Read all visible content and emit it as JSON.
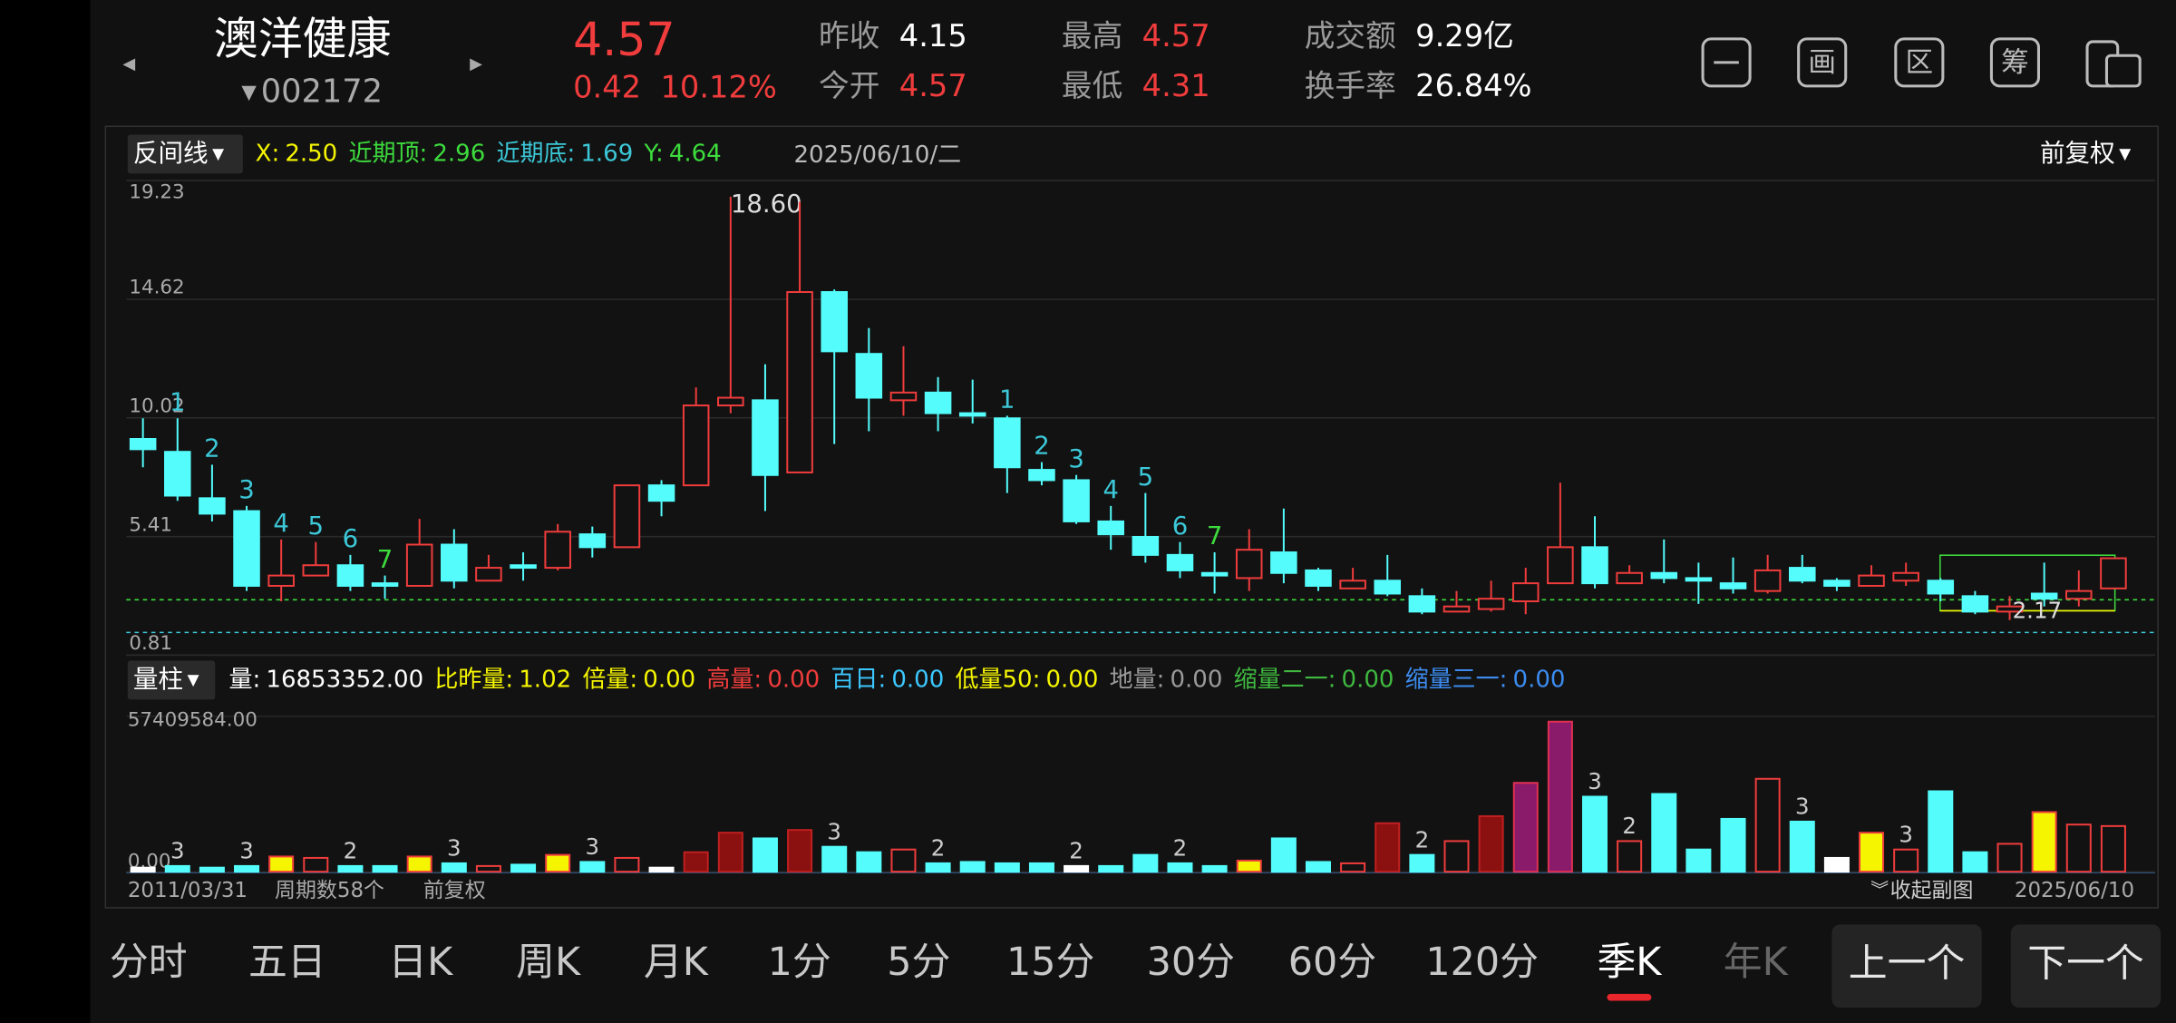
{
  "header": {
    "name": "澳洋健康",
    "code": "002172",
    "price": "4.57",
    "change": "0.42",
    "change_pct": "10.12%",
    "stats": [
      {
        "label": "昨收",
        "value": "4.15",
        "color": "#ffffff"
      },
      {
        "label": "今开",
        "value": "4.57",
        "color": "#f03c3c"
      },
      {
        "label": "最高",
        "value": "4.57",
        "color": "#f03c3c"
      },
      {
        "label": "最低",
        "value": "4.31",
        "color": "#f03c3c"
      },
      {
        "label": "成交额",
        "value": "9.29亿",
        "color": "#ffffff"
      },
      {
        "label": "换手率",
        "value": "26.84%",
        "color": "#ffffff"
      }
    ]
  },
  "toolbar": [
    "画",
    "区",
    "筹"
  ],
  "price_indicator": {
    "name": "反间线",
    "date": "2025/06/10/二",
    "adjust": "前复权",
    "items": [
      {
        "label": "X:",
        "value": "2.50",
        "color": "#f5f500"
      },
      {
        "label": "近期顶:",
        "value": 2.96,
        "color": "#3ddc3d"
      },
      {
        "label": "近期底:",
        "value": 1.69,
        "color": "#3cc8d8"
      },
      {
        "label": "Y:",
        "value": 4.64,
        "color": "#3ddc3d"
      }
    ]
  },
  "volume_indicator": {
    "name": "量柱",
    "items": [
      {
        "label": "量:",
        "value": "16853352.00",
        "color": "#ffffff"
      },
      {
        "label": "比昨量:",
        "value": "1.02",
        "color": "#f5f500"
      },
      {
        "label": "倍量:",
        "value": "0.00",
        "color": "#f5f500"
      },
      {
        "label": "高量:",
        "value": "0.00",
        "color": "#f03c3c"
      },
      {
        "label": "百日:",
        "value": "0.00",
        "color": "#3cc8ff"
      },
      {
        "label": "低量50:",
        "value": "0.00",
        "color": "#f5f500"
      },
      {
        "label": "地量:",
        "value": "0.00",
        "color": "#9a9a9a"
      },
      {
        "label": "缩量二一:",
        "value": "0.00",
        "color": "#3fb83f"
      },
      {
        "label": "缩量三一:",
        "value": "0.00",
        "color": "#3c8cf0"
      }
    ]
  },
  "chart_data": [
    {
      "type": "candlestick",
      "open": [
        9.2,
        8.7,
        6.9,
        6.4,
        3.5,
        3.9,
        4.3,
        3.6,
        3.5,
        5.1,
        3.7,
        4.3,
        4.2,
        5.5,
        5.0,
        7.4,
        7.4,
        10.5,
        10.7,
        7.9,
        14.9,
        12.5,
        10.7,
        11.0,
        10.2,
        10.0,
        8.0,
        7.6,
        6.0,
        5.4,
        4.7,
        4.0,
        3.8,
        4.8,
        4.1,
        3.4,
        3.7,
        3.1,
        2.5,
        2.6,
        2.9,
        3.6,
        5.0,
        3.6,
        4.0,
        3.8,
        3.6,
        3.3,
        4.2,
        3.7,
        3.5,
        3.7,
        3.7,
        3.1,
        2.5,
        3.2,
        3.0,
        3.4
      ],
      "close": [
        8.8,
        7.0,
        6.3,
        3.5,
        3.9,
        4.3,
        3.5,
        3.5,
        5.1,
        3.7,
        4.2,
        4.2,
        5.6,
        5.0,
        7.4,
        6.8,
        10.5,
        10.8,
        7.8,
        14.9,
        12.6,
        10.8,
        11.0,
        10.2,
        10.1,
        8.1,
        7.6,
        6.0,
        5.5,
        4.7,
        4.1,
        3.9,
        4.9,
        4.0,
        3.5,
        3.7,
        3.2,
        2.5,
        2.7,
        3.0,
        3.6,
        5.0,
        3.6,
        4.0,
        3.8,
        3.7,
        3.4,
        4.1,
        3.7,
        3.5,
        3.9,
        4.0,
        3.2,
        2.5,
        2.7,
        3.0,
        3.3,
        4.57
      ],
      "high": [
        10.0,
        10.0,
        8.2,
        6.6,
        5.3,
        5.2,
        4.7,
        3.9,
        6.1,
        5.7,
        4.7,
        4.8,
        5.9,
        5.8,
        7.4,
        7.6,
        11.2,
        18.6,
        12.1,
        18.4,
        15.0,
        13.5,
        12.8,
        11.6,
        11.5,
        10.1,
        8.3,
        7.8,
        6.6,
        7.1,
        5.2,
        4.8,
        5.7,
        6.5,
        4.2,
        4.2,
        4.7,
        3.4,
        3.3,
        3.7,
        4.2,
        7.5,
        6.2,
        4.3,
        5.3,
        4.4,
        4.6,
        4.7,
        4.7,
        3.8,
        4.3,
        4.4,
        3.8,
        3.3,
        3.1,
        4.4,
        4.1,
        4.57
      ],
      "low": [
        8.1,
        6.8,
        6.0,
        3.3,
        2.9,
        3.9,
        3.3,
        3.0,
        3.5,
        3.4,
        3.7,
        3.7,
        4.1,
        4.6,
        5.0,
        6.2,
        7.4,
        10.2,
        6.4,
        7.9,
        9.0,
        9.5,
        10.1,
        9.5,
        9.8,
        7.1,
        7.4,
        5.9,
        4.9,
        4.4,
        3.8,
        3.2,
        3.3,
        3.6,
        3.3,
        3.4,
        3.1,
        2.4,
        2.5,
        2.5,
        2.4,
        3.6,
        3.4,
        3.6,
        3.6,
        2.8,
        3.2,
        3.2,
        3.6,
        3.3,
        3.5,
        3.5,
        2.9,
        2.4,
        2.17,
        2.7,
        2.7,
        3.4
      ],
      "high_labels": [
        null,
        null,
        null,
        null,
        null,
        null,
        null,
        null,
        null,
        null,
        null,
        null,
        null,
        null,
        null,
        null,
        null,
        "18.60",
        null,
        null,
        null,
        null,
        null,
        null,
        null,
        null,
        null,
        null,
        null,
        null,
        null,
        null,
        null,
        null,
        null,
        null,
        null,
        null,
        null,
        null,
        null,
        null,
        null,
        null,
        null,
        null,
        null,
        null,
        null,
        null,
        null,
        null,
        null,
        null,
        null,
        null,
        null,
        null
      ],
      "low_labels": [
        null,
        null,
        null,
        null,
        null,
        null,
        null,
        null,
        null,
        null,
        null,
        null,
        null,
        null,
        null,
        null,
        null,
        null,
        null,
        null,
        null,
        null,
        null,
        null,
        null,
        null,
        null,
        null,
        null,
        null,
        null,
        null,
        null,
        null,
        null,
        null,
        null,
        null,
        null,
        null,
        null,
        null,
        null,
        null,
        null,
        null,
        null,
        null,
        null,
        null,
        null,
        null,
        null,
        null,
        "2.17",
        null,
        null,
        null
      ],
      "count_labels": [
        null,
        "1",
        "2",
        "3",
        "4",
        "5",
        "6",
        "7",
        null,
        null,
        null,
        null,
        null,
        null,
        null,
        null,
        null,
        null,
        null,
        null,
        null,
        null,
        null,
        null,
        null,
        "1",
        "2",
        "3",
        "4",
        "5",
        "6",
        "7",
        null,
        null,
        null,
        null,
        null,
        null,
        null,
        null,
        null,
        null,
        null,
        null,
        null,
        null,
        null,
        null,
        null,
        null,
        null,
        null,
        null,
        null,
        null,
        null,
        null,
        null
      ],
      "count_colors": {
        "default": "#3cc8d8",
        "7": "#3ddc3d"
      },
      "up_color": "#f03c3c",
      "down_color": "#54fcfc",
      "ylim": [
        0.81,
        19.23
      ],
      "yticks": [
        19.23,
        14.62,
        10.02,
        5.41,
        0.81
      ],
      "grid": true
    },
    {
      "type": "bar",
      "values": [
        1500000,
        2100000,
        1500000,
        2100000,
        5600000,
        5100000,
        2100000,
        2100000,
        5600000,
        3100000,
        2100000,
        2600000,
        6200000,
        3600000,
        5100000,
        1500000,
        7200000,
        14400000,
        12300000,
        15400000,
        9200000,
        7200000,
        8200000,
        3100000,
        3600000,
        3100000,
        3100000,
        2100000,
        2100000,
        6200000,
        3100000,
        2100000,
        4100000,
        12300000,
        3600000,
        3100000,
        17900000,
        6200000,
        11300000,
        20500000,
        32800000,
        55400000,
        27700000,
        11300000,
        28700000,
        8200000,
        19500000,
        34300000,
        18500000,
        5100000,
        14400000,
        8200000,
        29700000,
        7200000,
        10300000,
        22000000,
        17400000,
        16853352
      ],
      "styles": [
        "white",
        "down",
        "down",
        "down",
        "yellow",
        "up",
        "down",
        "down",
        "yellow",
        "down",
        "up",
        "down",
        "yellow",
        "down",
        "up",
        "white",
        "dark",
        "dark",
        "down",
        "dark",
        "down",
        "down",
        "up",
        "down",
        "down",
        "down",
        "down",
        "white",
        "down",
        "down",
        "down",
        "down",
        "yellow",
        "down",
        "down",
        "up",
        "dark",
        "down",
        "up",
        "dark",
        "purple",
        "purple",
        "down",
        "up",
        "down",
        "down",
        "down",
        "up",
        "down",
        "white",
        "yellow",
        "up",
        "down",
        "down",
        "up",
        "yellow",
        "up",
        "up"
      ],
      "style_colors": {
        "down": {
          "fill": "#54fcfc",
          "stroke": "#54fcfc"
        },
        "up": {
          "fill": "none",
          "stroke": "#f03c3c"
        },
        "dark": {
          "fill": "#8b1010",
          "stroke": "#c02020"
        },
        "purple": {
          "fill": "#8a1a6a",
          "stroke": "#e03050"
        },
        "yellow": {
          "fill": "#f5f500",
          "stroke": "#f03c3c"
        },
        "white": {
          "fill": "#ffffff",
          "stroke": "#ffffff"
        }
      },
      "bar_labels": [
        null,
        "3",
        null,
        "3",
        null,
        null,
        "2",
        null,
        null,
        "3",
        null,
        null,
        null,
        "3",
        null,
        null,
        null,
        null,
        null,
        null,
        "3",
        null,
        null,
        "2",
        null,
        null,
        null,
        "2",
        null,
        null,
        "2",
        null,
        null,
        null,
        null,
        null,
        null,
        "2",
        null,
        null,
        null,
        null,
        "3",
        "2",
        null,
        null,
        null,
        null,
        "3",
        null,
        null,
        "3",
        null,
        null,
        null,
        null,
        null,
        null
      ],
      "ylim": [
        0,
        57409584
      ],
      "yticks": [
        {
          "value": 57409584,
          "label": "57409584.00"
        },
        {
          "value": 0,
          "label": "0.00"
        }
      ]
    }
  ],
  "footer": {
    "start": "2011/03/31",
    "periods": "周期数58个",
    "adjust": "前复权",
    "collapse": "收起副图",
    "end": "2025/06/10"
  },
  "tabs": [
    {
      "text": "分时",
      "state": "normal"
    },
    {
      "text": "五日",
      "state": "normal"
    },
    {
      "text": "日K",
      "state": "normal"
    },
    {
      "text": "周K",
      "state": "normal"
    },
    {
      "text": "月K",
      "state": "normal"
    },
    {
      "text": "1分",
      "state": "normal"
    },
    {
      "text": "5分",
      "state": "normal"
    },
    {
      "text": "15分",
      "state": "normal"
    },
    {
      "text": "30分",
      "state": "normal"
    },
    {
      "text": "60分",
      "state": "normal"
    },
    {
      "text": "120分",
      "state": "normal"
    },
    {
      "text": "季K",
      "state": "active"
    },
    {
      "text": "年K",
      "state": "dim"
    }
  ],
  "buttons": [
    "上一个",
    "下一个"
  ]
}
